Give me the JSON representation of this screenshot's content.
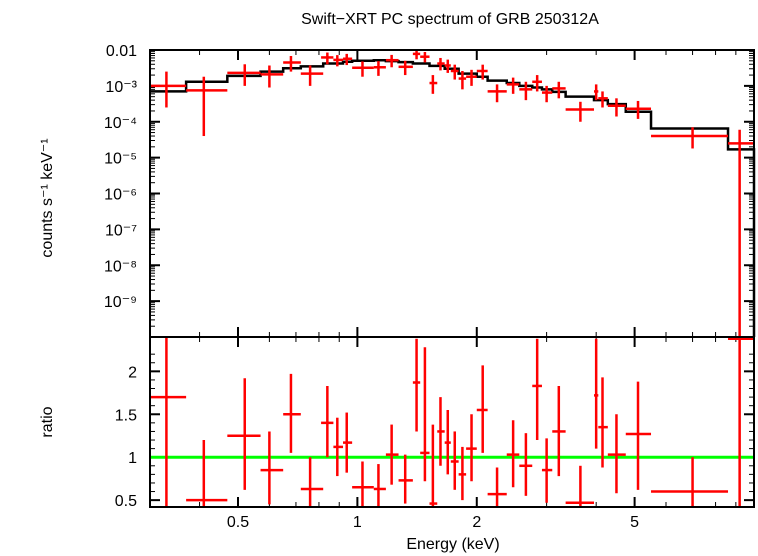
{
  "chart_data": [
    {
      "type": "scatter",
      "panel": "top",
      "title": "Swift−XRT PC spectrum of GRB 250312A",
      "ylabel": "counts s⁻¹ keV⁻¹",
      "xlabel": "",
      "x_scale": "log",
      "y_scale": "log",
      "xlim": [
        0.3,
        10
      ],
      "ylim": [
        1e-10,
        0.01
      ],
      "y_ticks": [
        {
          "value": 0.01,
          "label": "0.01"
        },
        {
          "value": 0.001,
          "label": "10⁻³"
        },
        {
          "value": 0.0001,
          "label": "10⁻⁴"
        },
        {
          "value": 1e-05,
          "label": "10⁻⁵"
        },
        {
          "value": 1e-06,
          "label": "10⁻⁶"
        },
        {
          "value": 1e-07,
          "label": "10⁻⁷"
        },
        {
          "value": 1e-08,
          "label": "10⁻⁸"
        },
        {
          "value": 1e-09,
          "label": "10⁻⁹"
        }
      ],
      "series": [
        {
          "color": "#ff0000",
          "marker": "cross-errorbar",
          "points": [
            {
              "x": 0.33,
              "xlo": 0.3,
              "xhi": 0.37,
              "y": 0.001,
              "ylo": 0.00025,
              "yhi": 0.0025
            },
            {
              "x": 0.41,
              "xlo": 0.37,
              "xhi": 0.47,
              "y": 0.00075,
              "ylo": 4e-05,
              "yhi": 0.0018
            },
            {
              "x": 0.52,
              "xlo": 0.47,
              "xhi": 0.57,
              "y": 0.0023,
              "ylo": 0.001,
              "yhi": 0.004
            },
            {
              "x": 0.6,
              "xlo": 0.57,
              "xhi": 0.65,
              "y": 0.0021,
              "ylo": 0.0009,
              "yhi": 0.0037
            },
            {
              "x": 0.68,
              "xlo": 0.65,
              "xhi": 0.72,
              "y": 0.0045,
              "ylo": 0.0025,
              "yhi": 0.0068
            },
            {
              "x": 0.76,
              "xlo": 0.72,
              "xhi": 0.82,
              "y": 0.0022,
              "ylo": 0.001,
              "yhi": 0.0037
            },
            {
              "x": 0.84,
              "xlo": 0.81,
              "xhi": 0.87,
              "y": 0.0062,
              "ylo": 0.004,
              "yhi": 0.0085
            },
            {
              "x": 0.89,
              "xlo": 0.87,
              "xhi": 0.92,
              "y": 0.0053,
              "ylo": 0.0035,
              "yhi": 0.0072
            },
            {
              "x": 0.94,
              "xlo": 0.92,
              "xhi": 0.97,
              "y": 0.0057,
              "ylo": 0.0038,
              "yhi": 0.0078
            },
            {
              "x": 1.03,
              "xlo": 0.97,
              "xhi": 1.1,
              "y": 0.0032,
              "ylo": 0.0018,
              "yhi": 0.0048
            },
            {
              "x": 1.13,
              "xlo": 1.1,
              "xhi": 1.18,
              "y": 0.0033,
              "ylo": 0.0019,
              "yhi": 0.0049
            },
            {
              "x": 1.22,
              "xlo": 1.18,
              "xhi": 1.27,
              "y": 0.0052,
              "ylo": 0.0033,
              "yhi": 0.0073
            },
            {
              "x": 1.32,
              "xlo": 1.27,
              "xhi": 1.38,
              "y": 0.0034,
              "ylo": 0.002,
              "yhi": 0.005
            },
            {
              "x": 1.41,
              "xlo": 1.38,
              "xhi": 1.44,
              "y": 0.0078,
              "ylo": 0.0055,
              "yhi": 0.0105
            },
            {
              "x": 1.48,
              "xlo": 1.44,
              "xhi": 1.52,
              "y": 0.0065,
              "ylo": 0.0045,
              "yhi": 0.0088
            },
            {
              "x": 1.55,
              "xlo": 1.52,
              "xhi": 1.59,
              "y": 0.0012,
              "ylo": 0.0006,
              "yhi": 0.002
            },
            {
              "x": 1.62,
              "xlo": 1.59,
              "xhi": 1.66,
              "y": 0.0042,
              "ylo": 0.0027,
              "yhi": 0.006
            },
            {
              "x": 1.69,
              "xlo": 1.66,
              "xhi": 1.72,
              "y": 0.0037,
              "ylo": 0.0023,
              "yhi": 0.0054
            },
            {
              "x": 1.76,
              "xlo": 1.72,
              "xhi": 1.8,
              "y": 0.0026,
              "ylo": 0.0015,
              "yhi": 0.0039
            },
            {
              "x": 1.84,
              "xlo": 1.8,
              "xhi": 1.88,
              "y": 0.0016,
              "ylo": 0.0008,
              "yhi": 0.0026
            },
            {
              "x": 1.94,
              "xlo": 1.88,
              "xhi": 2.0,
              "y": 0.0018,
              "ylo": 0.001,
              "yhi": 0.0028
            },
            {
              "x": 2.07,
              "xlo": 2.0,
              "xhi": 2.13,
              "y": 0.0026,
              "ylo": 0.0015,
              "yhi": 0.0039
            },
            {
              "x": 2.25,
              "xlo": 2.13,
              "xhi": 2.38,
              "y": 0.0007,
              "ylo": 0.00035,
              "yhi": 0.0011
            },
            {
              "x": 2.47,
              "xlo": 2.38,
              "xhi": 2.56,
              "y": 0.0011,
              "ylo": 0.0006,
              "yhi": 0.0017
            },
            {
              "x": 2.66,
              "xlo": 2.56,
              "xhi": 2.76,
              "y": 0.0008,
              "ylo": 0.0004,
              "yhi": 0.0013
            },
            {
              "x": 2.84,
              "xlo": 2.76,
              "xhi": 2.92,
              "y": 0.0013,
              "ylo": 0.0007,
              "yhi": 0.002
            },
            {
              "x": 3.0,
              "xlo": 2.92,
              "xhi": 3.1,
              "y": 0.00065,
              "ylo": 0.00035,
              "yhi": 0.001
            },
            {
              "x": 3.22,
              "xlo": 3.1,
              "xhi": 3.35,
              "y": 0.00085,
              "ylo": 0.00045,
              "yhi": 0.0013
            },
            {
              "x": 3.65,
              "xlo": 3.35,
              "xhi": 3.95,
              "y": 0.00022,
              "ylo": 0.0001,
              "yhi": 0.00036
            },
            {
              "x": 4.0,
              "xlo": 3.95,
              "xhi": 4.05,
              "y": 0.0007,
              "ylo": 0.0004,
              "yhi": 0.0011
            },
            {
              "x": 4.15,
              "xlo": 4.05,
              "xhi": 4.28,
              "y": 0.00045,
              "ylo": 0.00025,
              "yhi": 0.0007
            },
            {
              "x": 4.5,
              "xlo": 4.28,
              "xhi": 4.75,
              "y": 0.00028,
              "ylo": 0.00014,
              "yhi": 0.00045
            },
            {
              "x": 5.1,
              "xlo": 4.75,
              "xhi": 5.5,
              "y": 0.00023,
              "ylo": 0.00012,
              "yhi": 0.00038
            },
            {
              "x": 7.0,
              "xlo": 5.5,
              "xhi": 8.6,
              "y": 4e-05,
              "ylo": 1.8e-05,
              "yhi": 7e-05
            },
            {
              "x": 9.2,
              "xlo": 8.6,
              "xhi": 10.0,
              "y": 2.5e-05,
              "ylo": 1e-10,
              "yhi": 6e-05
            }
          ]
        },
        {
          "color": "#000000",
          "style": "step-model",
          "steps": [
            {
              "xlo": 0.3,
              "xhi": 0.37,
              "y": 0.0007
            },
            {
              "xlo": 0.37,
              "xhi": 0.47,
              "y": 0.0013
            },
            {
              "xlo": 0.47,
              "xhi": 0.57,
              "y": 0.0019
            },
            {
              "xlo": 0.57,
              "xhi": 0.65,
              "y": 0.0025
            },
            {
              "xlo": 0.65,
              "xhi": 0.72,
              "y": 0.0031
            },
            {
              "xlo": 0.72,
              "xhi": 0.82,
              "y": 0.0035
            },
            {
              "xlo": 0.82,
              "xhi": 0.92,
              "y": 0.0042
            },
            {
              "xlo": 0.92,
              "xhi": 0.97,
              "y": 0.0047
            },
            {
              "xlo": 0.97,
              "xhi": 1.1,
              "y": 0.005
            },
            {
              "xlo": 1.1,
              "xhi": 1.18,
              "y": 0.0052
            },
            {
              "xlo": 1.18,
              "xhi": 1.27,
              "y": 0.0049
            },
            {
              "xlo": 1.27,
              "xhi": 1.38,
              "y": 0.0046
            },
            {
              "xlo": 1.38,
              "xhi": 1.52,
              "y": 0.0042
            },
            {
              "xlo": 1.52,
              "xhi": 1.66,
              "y": 0.0036
            },
            {
              "xlo": 1.66,
              "xhi": 1.8,
              "y": 0.003
            },
            {
              "xlo": 1.8,
              "xhi": 2.0,
              "y": 0.0022
            },
            {
              "xlo": 2.0,
              "xhi": 2.13,
              "y": 0.0018
            },
            {
              "xlo": 2.13,
              "xhi": 2.38,
              "y": 0.0014
            },
            {
              "xlo": 2.38,
              "xhi": 2.56,
              "y": 0.0012
            },
            {
              "xlo": 2.56,
              "xhi": 2.76,
              "y": 0.001
            },
            {
              "xlo": 2.76,
              "xhi": 2.92,
              "y": 0.0009
            },
            {
              "xlo": 2.92,
              "xhi": 3.1,
              "y": 0.0008
            },
            {
              "xlo": 3.1,
              "xhi": 3.35,
              "y": 0.00068
            },
            {
              "xlo": 3.35,
              "xhi": 3.95,
              "y": 0.0005
            },
            {
              "xlo": 3.95,
              "xhi": 4.28,
              "y": 0.0004
            },
            {
              "xlo": 4.28,
              "xhi": 4.75,
              "y": 0.00031
            },
            {
              "xlo": 4.75,
              "xhi": 5.5,
              "y": 0.00019
            },
            {
              "xlo": 5.5,
              "xhi": 8.6,
              "y": 6.5e-05
            },
            {
              "xlo": 8.6,
              "xhi": 10.0,
              "y": 1.7e-05
            }
          ]
        }
      ]
    },
    {
      "type": "scatter",
      "panel": "bottom",
      "xlabel": "Energy (keV)",
      "ylabel": "ratio",
      "x_scale": "log",
      "xlim": [
        0.3,
        10
      ],
      "ylim": [
        0.42,
        2.4
      ],
      "x_ticks": [
        {
          "value": 0.5,
          "label": "0.5"
        },
        {
          "value": 1,
          "label": "1"
        },
        {
          "value": 2,
          "label": "2"
        },
        {
          "value": 5,
          "label": "5"
        }
      ],
      "y_ticks": [
        {
          "value": 0.5,
          "label": "0.5"
        },
        {
          "value": 1,
          "label": "1"
        },
        {
          "value": 1.5,
          "label": "1.5"
        },
        {
          "value": 2,
          "label": "2"
        }
      ],
      "reference_line": {
        "y": 1,
        "color": "#00ff00"
      },
      "series": [
        {
          "color": "#ff0000",
          "marker": "cross-errorbar",
          "points": [
            {
              "x": 0.33,
              "xlo": 0.3,
              "xhi": 0.37,
              "y": 1.7,
              "ylo": 0.42,
              "yhi": 2.4
            },
            {
              "x": 0.41,
              "xlo": 0.37,
              "xhi": 0.47,
              "y": 0.5,
              "ylo": 0.42,
              "yhi": 1.2
            },
            {
              "x": 0.52,
              "xlo": 0.47,
              "xhi": 0.57,
              "y": 1.25,
              "ylo": 0.62,
              "yhi": 1.92
            },
            {
              "x": 0.6,
              "xlo": 0.57,
              "xhi": 0.65,
              "y": 0.85,
              "ylo": 0.45,
              "yhi": 1.3
            },
            {
              "x": 0.68,
              "xlo": 0.65,
              "xhi": 0.72,
              "y": 1.5,
              "ylo": 1.05,
              "yhi": 1.97
            },
            {
              "x": 0.76,
              "xlo": 0.72,
              "xhi": 0.82,
              "y": 0.63,
              "ylo": 0.42,
              "yhi": 1.0
            },
            {
              "x": 0.84,
              "xlo": 0.81,
              "xhi": 0.87,
              "y": 1.4,
              "ylo": 1.0,
              "yhi": 1.83
            },
            {
              "x": 0.89,
              "xlo": 0.87,
              "xhi": 0.92,
              "y": 1.12,
              "ylo": 0.78,
              "yhi": 1.46
            },
            {
              "x": 0.94,
              "xlo": 0.92,
              "xhi": 0.97,
              "y": 1.17,
              "ylo": 0.82,
              "yhi": 1.52
            },
            {
              "x": 1.03,
              "xlo": 0.97,
              "xhi": 1.1,
              "y": 0.65,
              "ylo": 0.42,
              "yhi": 0.95
            },
            {
              "x": 1.13,
              "xlo": 1.1,
              "xhi": 1.18,
              "y": 0.63,
              "ylo": 0.42,
              "yhi": 0.92
            },
            {
              "x": 1.22,
              "xlo": 1.18,
              "xhi": 1.27,
              "y": 1.03,
              "ylo": 0.68,
              "yhi": 1.38
            },
            {
              "x": 1.32,
              "xlo": 1.27,
              "xhi": 1.38,
              "y": 0.73,
              "ylo": 0.46,
              "yhi": 1.03
            },
            {
              "x": 1.41,
              "xlo": 1.38,
              "xhi": 1.44,
              "y": 1.87,
              "ylo": 1.3,
              "yhi": 2.38
            },
            {
              "x": 1.48,
              "xlo": 1.44,
              "xhi": 1.52,
              "y": 1.05,
              "ylo": 0.72,
              "yhi": 2.28
            },
            {
              "x": 1.55,
              "xlo": 1.52,
              "xhi": 1.59,
              "y": 0.46,
              "ylo": 0.42,
              "yhi": 1.38
            },
            {
              "x": 1.62,
              "xlo": 1.59,
              "xhi": 1.66,
              "y": 1.3,
              "ylo": 0.9,
              "yhi": 1.7
            },
            {
              "x": 1.69,
              "xlo": 1.66,
              "xhi": 1.72,
              "y": 1.17,
              "ylo": 0.8,
              "yhi": 1.55
            },
            {
              "x": 1.76,
              "xlo": 1.72,
              "xhi": 1.8,
              "y": 0.95,
              "ylo": 0.62,
              "yhi": 1.3
            },
            {
              "x": 1.84,
              "xlo": 1.8,
              "xhi": 1.88,
              "y": 0.8,
              "ylo": 0.5,
              "yhi": 1.12
            },
            {
              "x": 1.94,
              "xlo": 1.88,
              "xhi": 2.0,
              "y": 1.1,
              "ylo": 0.72,
              "yhi": 1.5
            },
            {
              "x": 2.07,
              "xlo": 2.0,
              "xhi": 2.13,
              "y": 1.55,
              "ylo": 1.05,
              "yhi": 2.07
            },
            {
              "x": 2.25,
              "xlo": 2.13,
              "xhi": 2.38,
              "y": 0.57,
              "ylo": 0.42,
              "yhi": 0.88
            },
            {
              "x": 2.47,
              "xlo": 2.38,
              "xhi": 2.56,
              "y": 1.03,
              "ylo": 0.65,
              "yhi": 1.43
            },
            {
              "x": 2.66,
              "xlo": 2.56,
              "xhi": 2.76,
              "y": 0.9,
              "ylo": 0.55,
              "yhi": 1.28
            },
            {
              "x": 2.84,
              "xlo": 2.76,
              "xhi": 2.92,
              "y": 1.83,
              "ylo": 1.2,
              "yhi": 2.38
            },
            {
              "x": 3.0,
              "xlo": 2.92,
              "xhi": 3.1,
              "y": 0.85,
              "ylo": 0.47,
              "yhi": 1.22
            },
            {
              "x": 3.22,
              "xlo": 3.1,
              "xhi": 3.35,
              "y": 1.3,
              "ylo": 0.78,
              "yhi": 1.83
            },
            {
              "x": 3.65,
              "xlo": 3.35,
              "xhi": 3.95,
              "y": 0.47,
              "ylo": 0.42,
              "yhi": 0.9
            },
            {
              "x": 4.0,
              "xlo": 3.95,
              "xhi": 4.05,
              "y": 1.72,
              "ylo": 1.1,
              "yhi": 2.38
            },
            {
              "x": 4.15,
              "xlo": 4.05,
              "xhi": 4.28,
              "y": 1.35,
              "ylo": 0.88,
              "yhi": 1.93
            },
            {
              "x": 4.5,
              "xlo": 4.28,
              "xhi": 4.75,
              "y": 1.03,
              "ylo": 0.58,
              "yhi": 1.5
            },
            {
              "x": 5.1,
              "xlo": 4.75,
              "xhi": 5.5,
              "y": 1.27,
              "ylo": 0.62,
              "yhi": 1.88
            },
            {
              "x": 7.0,
              "xlo": 5.5,
              "xhi": 8.6,
              "y": 0.6,
              "ylo": 0.42,
              "yhi": 1.0
            },
            {
              "x": 9.2,
              "xlo": 8.6,
              "xhi": 10.0,
              "y": 2.38,
              "ylo": 0.42,
              "yhi": 2.4
            }
          ]
        }
      ]
    }
  ]
}
